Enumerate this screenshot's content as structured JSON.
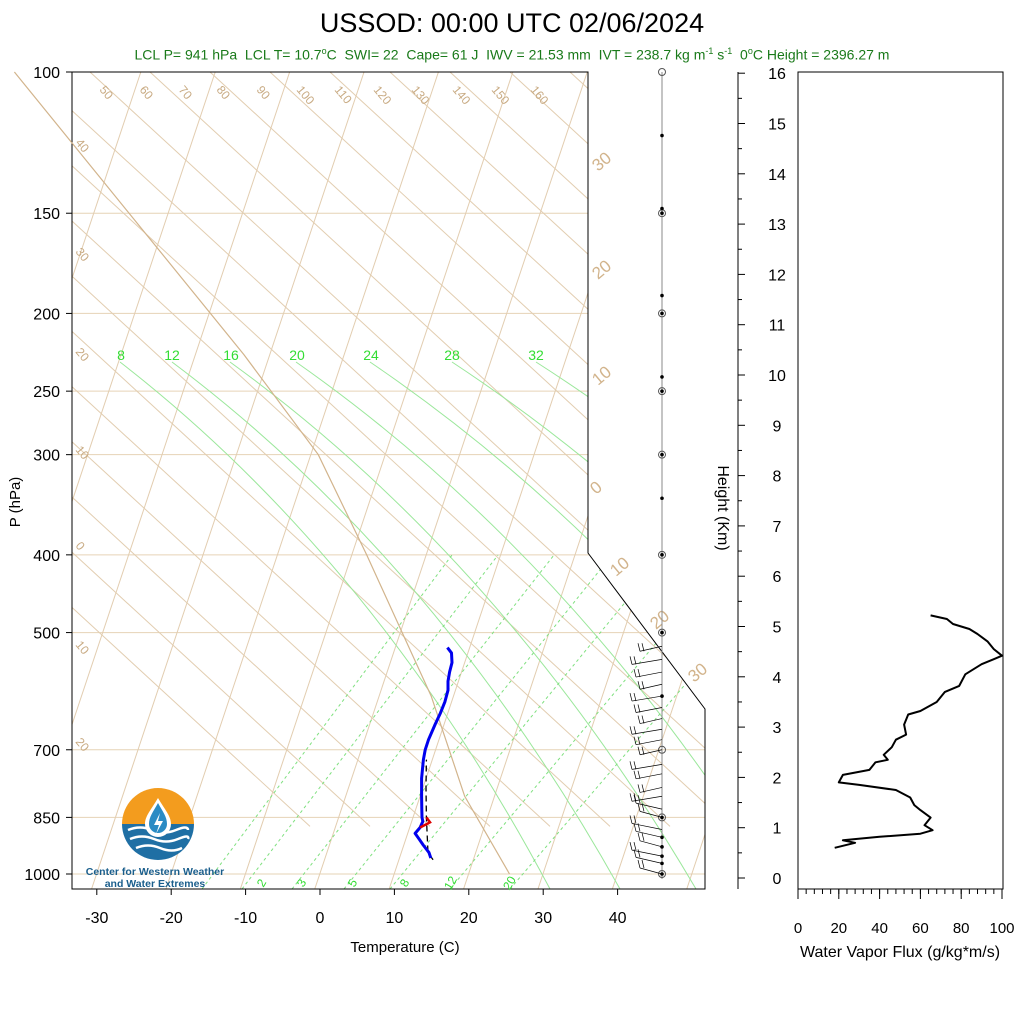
{
  "title": "USSOD: 00:00 UTC 02/06/2024",
  "subtitle": {
    "lcl_p": "LCL P= 941 hPa",
    "lcl_t": "LCL T= 10.7",
    "lcl_t_unit": "C",
    "swi": "SWI= 22",
    "cape": "Cape= 61 J",
    "iwv": "IWV = 21.53 mm",
    "ivt": "IVT = 238.7 kg m",
    "zero_height": "C Height = 2396.27 m"
  },
  "logo": {
    "line1": "Center for Western Weather",
    "line2": "and Water Extremes"
  },
  "colors": {
    "temperature": "#0000ee",
    "dewpoint_segment": "#dd0000",
    "dry_adiabat": "#d2b48c",
    "mixing_ratio": "#33dd33",
    "moist_adiabat": "#33dd33",
    "subtitle": "#1a7a1a"
  },
  "chart_data": [
    {
      "type": "line",
      "name": "skew-t",
      "xlabel": "Temperature (C)",
      "ylabel": "P (hPa)",
      "x_ticks": [
        "-30",
        "-20",
        "-10",
        "0",
        "10",
        "20",
        "30",
        "40"
      ],
      "y_ticks": [
        "100",
        "150",
        "200",
        "250",
        "300",
        "400",
        "500",
        "700",
        "850",
        "1000"
      ],
      "xlim": [
        -35,
        50
      ],
      "ylim": [
        1050,
        100
      ],
      "y_scale": "log",
      "mixing_ratio_top_labels": [
        "8",
        "12",
        "16",
        "20",
        "24",
        "28",
        "32"
      ],
      "mixing_ratio_bottom_labels": [
        "2",
        "3",
        "5",
        "8",
        "12",
        "20"
      ],
      "dry_adiabat_labels_top": [
        "50",
        "60",
        "70",
        "80",
        "90",
        "100",
        "110",
        "120",
        "130",
        "140",
        "150",
        "160"
      ],
      "dry_adiabat_labels_left": [
        "40",
        "30",
        "20",
        "10",
        "0",
        "10",
        "20"
      ],
      "isotherm_labels_right": [
        "30",
        "20",
        "10",
        "0",
        "10",
        "20",
        "30"
      ],
      "temperature_profile": [
        {
          "p": 955,
          "t": 14.2
        },
        {
          "p": 940,
          "t": 13.7
        },
        {
          "p": 920,
          "t": 12.6
        },
        {
          "p": 905,
          "t": 11.8
        },
        {
          "p": 890,
          "t": 11.0
        },
        {
          "p": 875,
          "t": 11.4
        },
        {
          "p": 860,
          "t": 11.5
        },
        {
          "p": 850,
          "t": 11.2
        },
        {
          "p": 830,
          "t": 10.8
        },
        {
          "p": 800,
          "t": 10.2
        },
        {
          "p": 760,
          "t": 9.4
        },
        {
          "p": 720,
          "t": 8.8
        },
        {
          "p": 700,
          "t": 8.6
        },
        {
          "p": 680,
          "t": 8.6
        },
        {
          "p": 650,
          "t": 8.8
        },
        {
          "p": 630,
          "t": 9.0
        },
        {
          "p": 610,
          "t": 9.1
        },
        {
          "p": 590,
          "t": 9.0
        },
        {
          "p": 575,
          "t": 8.6
        },
        {
          "p": 560,
          "t": 8.4
        },
        {
          "p": 545,
          "t": 8.3
        },
        {
          "p": 530,
          "t": 7.8
        },
        {
          "p": 522,
          "t": 7.0
        }
      ],
      "dewpoint_segment": [
        {
          "p": 875,
          "t": 11.4
        },
        {
          "p": 862,
          "t": 12.5
        },
        {
          "p": 850,
          "t": 11.8
        }
      ],
      "parcel_path": [
        {
          "p": 960,
          "t": 14.6
        },
        {
          "p": 941,
          "t": 13.6
        },
        {
          "p": 850,
          "t": 11.8
        },
        {
          "p": 780,
          "t": 10.4
        },
        {
          "p": 720,
          "t": 9.2
        }
      ],
      "environment_reference_line": [
        {
          "p": 1000,
          "t": 25.5
        },
        {
          "p": 800,
          "t": 16.0
        },
        {
          "p": 600,
          "t": 7.0
        },
        {
          "p": 400,
          "t": -8.0
        },
        {
          "p": 300,
          "t": -19.0
        },
        {
          "p": 225,
          "t": -33.5
        },
        {
          "p": 100,
          "t": -77.0
        }
      ],
      "wind_barb_pressures": [
        1000,
        970,
        950,
        925,
        900,
        880,
        850,
        830,
        800,
        780,
        750,
        730,
        700,
        680,
        660,
        640,
        620,
        600,
        580,
        560,
        540,
        520
      ],
      "wind_axis_dots": [
        1000,
        970,
        950,
        925,
        900,
        850,
        600,
        500,
        400,
        340,
        300,
        250,
        240,
        200,
        190,
        150,
        148,
        120
      ],
      "wind_axis_circles": [
        1000,
        850,
        700,
        500,
        400,
        300,
        250,
        200,
        150,
        100
      ]
    },
    {
      "type": "line",
      "name": "water-vapor-flux",
      "xlabel": "Water Vapor Flux (g/kg*m/s)",
      "ylabel": "Height (Km)",
      "x_ticks": [
        "0",
        "20",
        "40",
        "60",
        "80",
        "100"
      ],
      "y_ticks": [
        "0",
        "1",
        "2",
        "3",
        "4",
        "5",
        "6",
        "7",
        "8",
        "9",
        "10",
        "11",
        "12",
        "13",
        "14",
        "15",
        "16"
      ],
      "xlim": [
        0,
        100
      ],
      "ylim": [
        0,
        16
      ],
      "series": [
        {
          "values": [
            {
              "x": 18,
              "y": 0.6
            },
            {
              "x": 28,
              "y": 0.7
            },
            {
              "x": 22,
              "y": 0.75
            },
            {
              "x": 40,
              "y": 0.82
            },
            {
              "x": 60,
              "y": 0.88
            },
            {
              "x": 66,
              "y": 0.95
            },
            {
              "x": 62,
              "y": 1.05
            },
            {
              "x": 65,
              "y": 1.2
            },
            {
              "x": 60,
              "y": 1.35
            },
            {
              "x": 57,
              "y": 1.45
            },
            {
              "x": 55,
              "y": 1.6
            },
            {
              "x": 48,
              "y": 1.75
            },
            {
              "x": 30,
              "y": 1.85
            },
            {
              "x": 20,
              "y": 1.9
            },
            {
              "x": 22,
              "y": 2.05
            },
            {
              "x": 35,
              "y": 2.15
            },
            {
              "x": 38,
              "y": 2.3
            },
            {
              "x": 44,
              "y": 2.35
            },
            {
              "x": 42,
              "y": 2.45
            },
            {
              "x": 46,
              "y": 2.6
            },
            {
              "x": 48,
              "y": 2.75
            },
            {
              "x": 53,
              "y": 2.85
            },
            {
              "x": 52,
              "y": 3.05
            },
            {
              "x": 54,
              "y": 3.25
            },
            {
              "x": 60,
              "y": 3.32
            },
            {
              "x": 68,
              "y": 3.5
            },
            {
              "x": 72,
              "y": 3.7
            },
            {
              "x": 79,
              "y": 3.82
            },
            {
              "x": 82,
              "y": 4.05
            },
            {
              "x": 90,
              "y": 4.25
            },
            {
              "x": 96,
              "y": 4.35
            },
            {
              "x": 100,
              "y": 4.42
            },
            {
              "x": 96,
              "y": 4.55
            },
            {
              "x": 93,
              "y": 4.7
            },
            {
              "x": 88,
              "y": 4.85
            },
            {
              "x": 84,
              "y": 4.95
            },
            {
              "x": 76,
              "y": 5.05
            },
            {
              "x": 73,
              "y": 5.15
            },
            {
              "x": 65,
              "y": 5.22
            }
          ]
        }
      ]
    }
  ]
}
